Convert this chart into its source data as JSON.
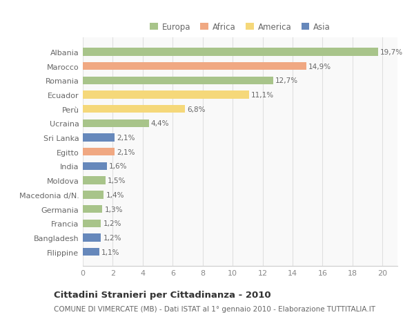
{
  "categories": [
    "Albania",
    "Marocco",
    "Romania",
    "Ecuador",
    "Perù",
    "Ucraina",
    "Sri Lanka",
    "Egitto",
    "India",
    "Moldova",
    "Macedonia d/N.",
    "Germania",
    "Francia",
    "Bangladesh",
    "Filippine"
  ],
  "values": [
    19.7,
    14.9,
    12.7,
    11.1,
    6.8,
    4.4,
    2.1,
    2.1,
    1.6,
    1.5,
    1.4,
    1.3,
    1.2,
    1.2,
    1.1
  ],
  "labels": [
    "19,7%",
    "14,9%",
    "12,7%",
    "11,1%",
    "6,8%",
    "4,4%",
    "2,1%",
    "2,1%",
    "1,6%",
    "1,5%",
    "1,4%",
    "1,3%",
    "1,2%",
    "1,2%",
    "1,1%"
  ],
  "continents": [
    "Europa",
    "Africa",
    "Europa",
    "America",
    "America",
    "Europa",
    "Asia",
    "Africa",
    "Asia",
    "Europa",
    "Europa",
    "Europa",
    "Europa",
    "Asia",
    "Asia"
  ],
  "colors": {
    "Europa": "#a8c48a",
    "Africa": "#f0a882",
    "America": "#f5d87a",
    "Asia": "#6688bb"
  },
  "legend_order": [
    "Europa",
    "Africa",
    "America",
    "Asia"
  ],
  "xlim": [
    0,
    21
  ],
  "xticks": [
    0,
    2,
    4,
    6,
    8,
    10,
    12,
    14,
    16,
    18,
    20
  ],
  "title": "Cittadini Stranieri per Cittadinanza - 2010",
  "subtitle": "COMUNE DI VIMERCATE (MB) - Dati ISTAT al 1° gennaio 2010 - Elaborazione TUTTITALIA.IT",
  "background_color": "#ffffff",
  "plot_bg_color": "#f9f9f9",
  "grid_color": "#e0e0e0",
  "bar_height": 0.55,
  "bar_alpha": 1.0,
  "label_fontsize": 7.5,
  "ytick_fontsize": 8.0,
  "xtick_fontsize": 8.0,
  "legend_fontsize": 8.5,
  "title_fontsize": 9.5,
  "subtitle_fontsize": 7.5
}
